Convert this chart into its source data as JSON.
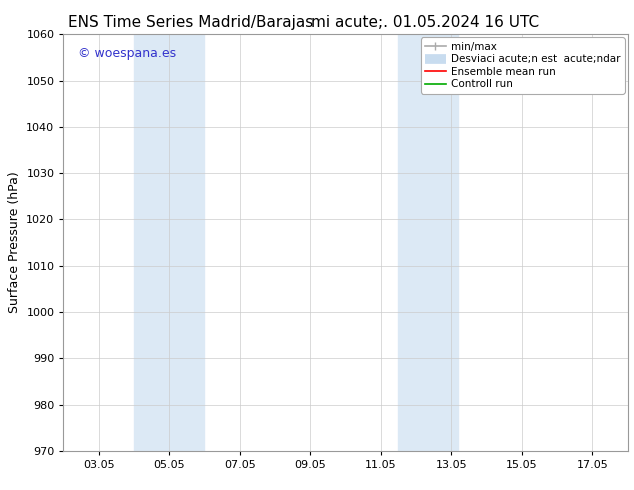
{
  "title_left": "ENS Time Series Madrid/Barajas",
  "title_right": "mi acute;. 01.05.2024 16 UTC",
  "ylabel": "Surface Pressure (hPa)",
  "ylim": [
    970,
    1060
  ],
  "yticks": [
    970,
    980,
    990,
    1000,
    1010,
    1020,
    1030,
    1040,
    1050,
    1060
  ],
  "xlim": [
    2.0,
    18.0
  ],
  "xtick_labels": [
    "03.05",
    "05.05",
    "07.05",
    "09.05",
    "11.05",
    "13.05",
    "15.05",
    "17.05"
  ],
  "xtick_positions": [
    3,
    5,
    7,
    9,
    11,
    13,
    15,
    17
  ],
  "shaded_regions": [
    {
      "x_start": 4.0,
      "x_end": 6.0,
      "color": "#dce9f5"
    },
    {
      "x_start": 11.5,
      "x_end": 13.2,
      "color": "#dce9f5"
    }
  ],
  "watermark_text": "© woespana.es",
  "watermark_color": "#3333cc",
  "watermark_fontsize": 9,
  "legend_label1": "min/max",
  "legend_label2": "Desviaci acute;n est  acute;ndar",
  "legend_label3": "Ensemble mean run",
  "legend_label4": "Controll run",
  "legend_color1": "#aaaaaa",
  "legend_color2": "#c8dcef",
  "legend_color3": "#ff0000",
  "legend_color4": "#00aa00",
  "background_color": "#ffffff",
  "plot_bg_color": "#ffffff",
  "grid_color": "#cccccc",
  "title_fontsize": 11,
  "ylabel_fontsize": 9,
  "tick_fontsize": 8
}
